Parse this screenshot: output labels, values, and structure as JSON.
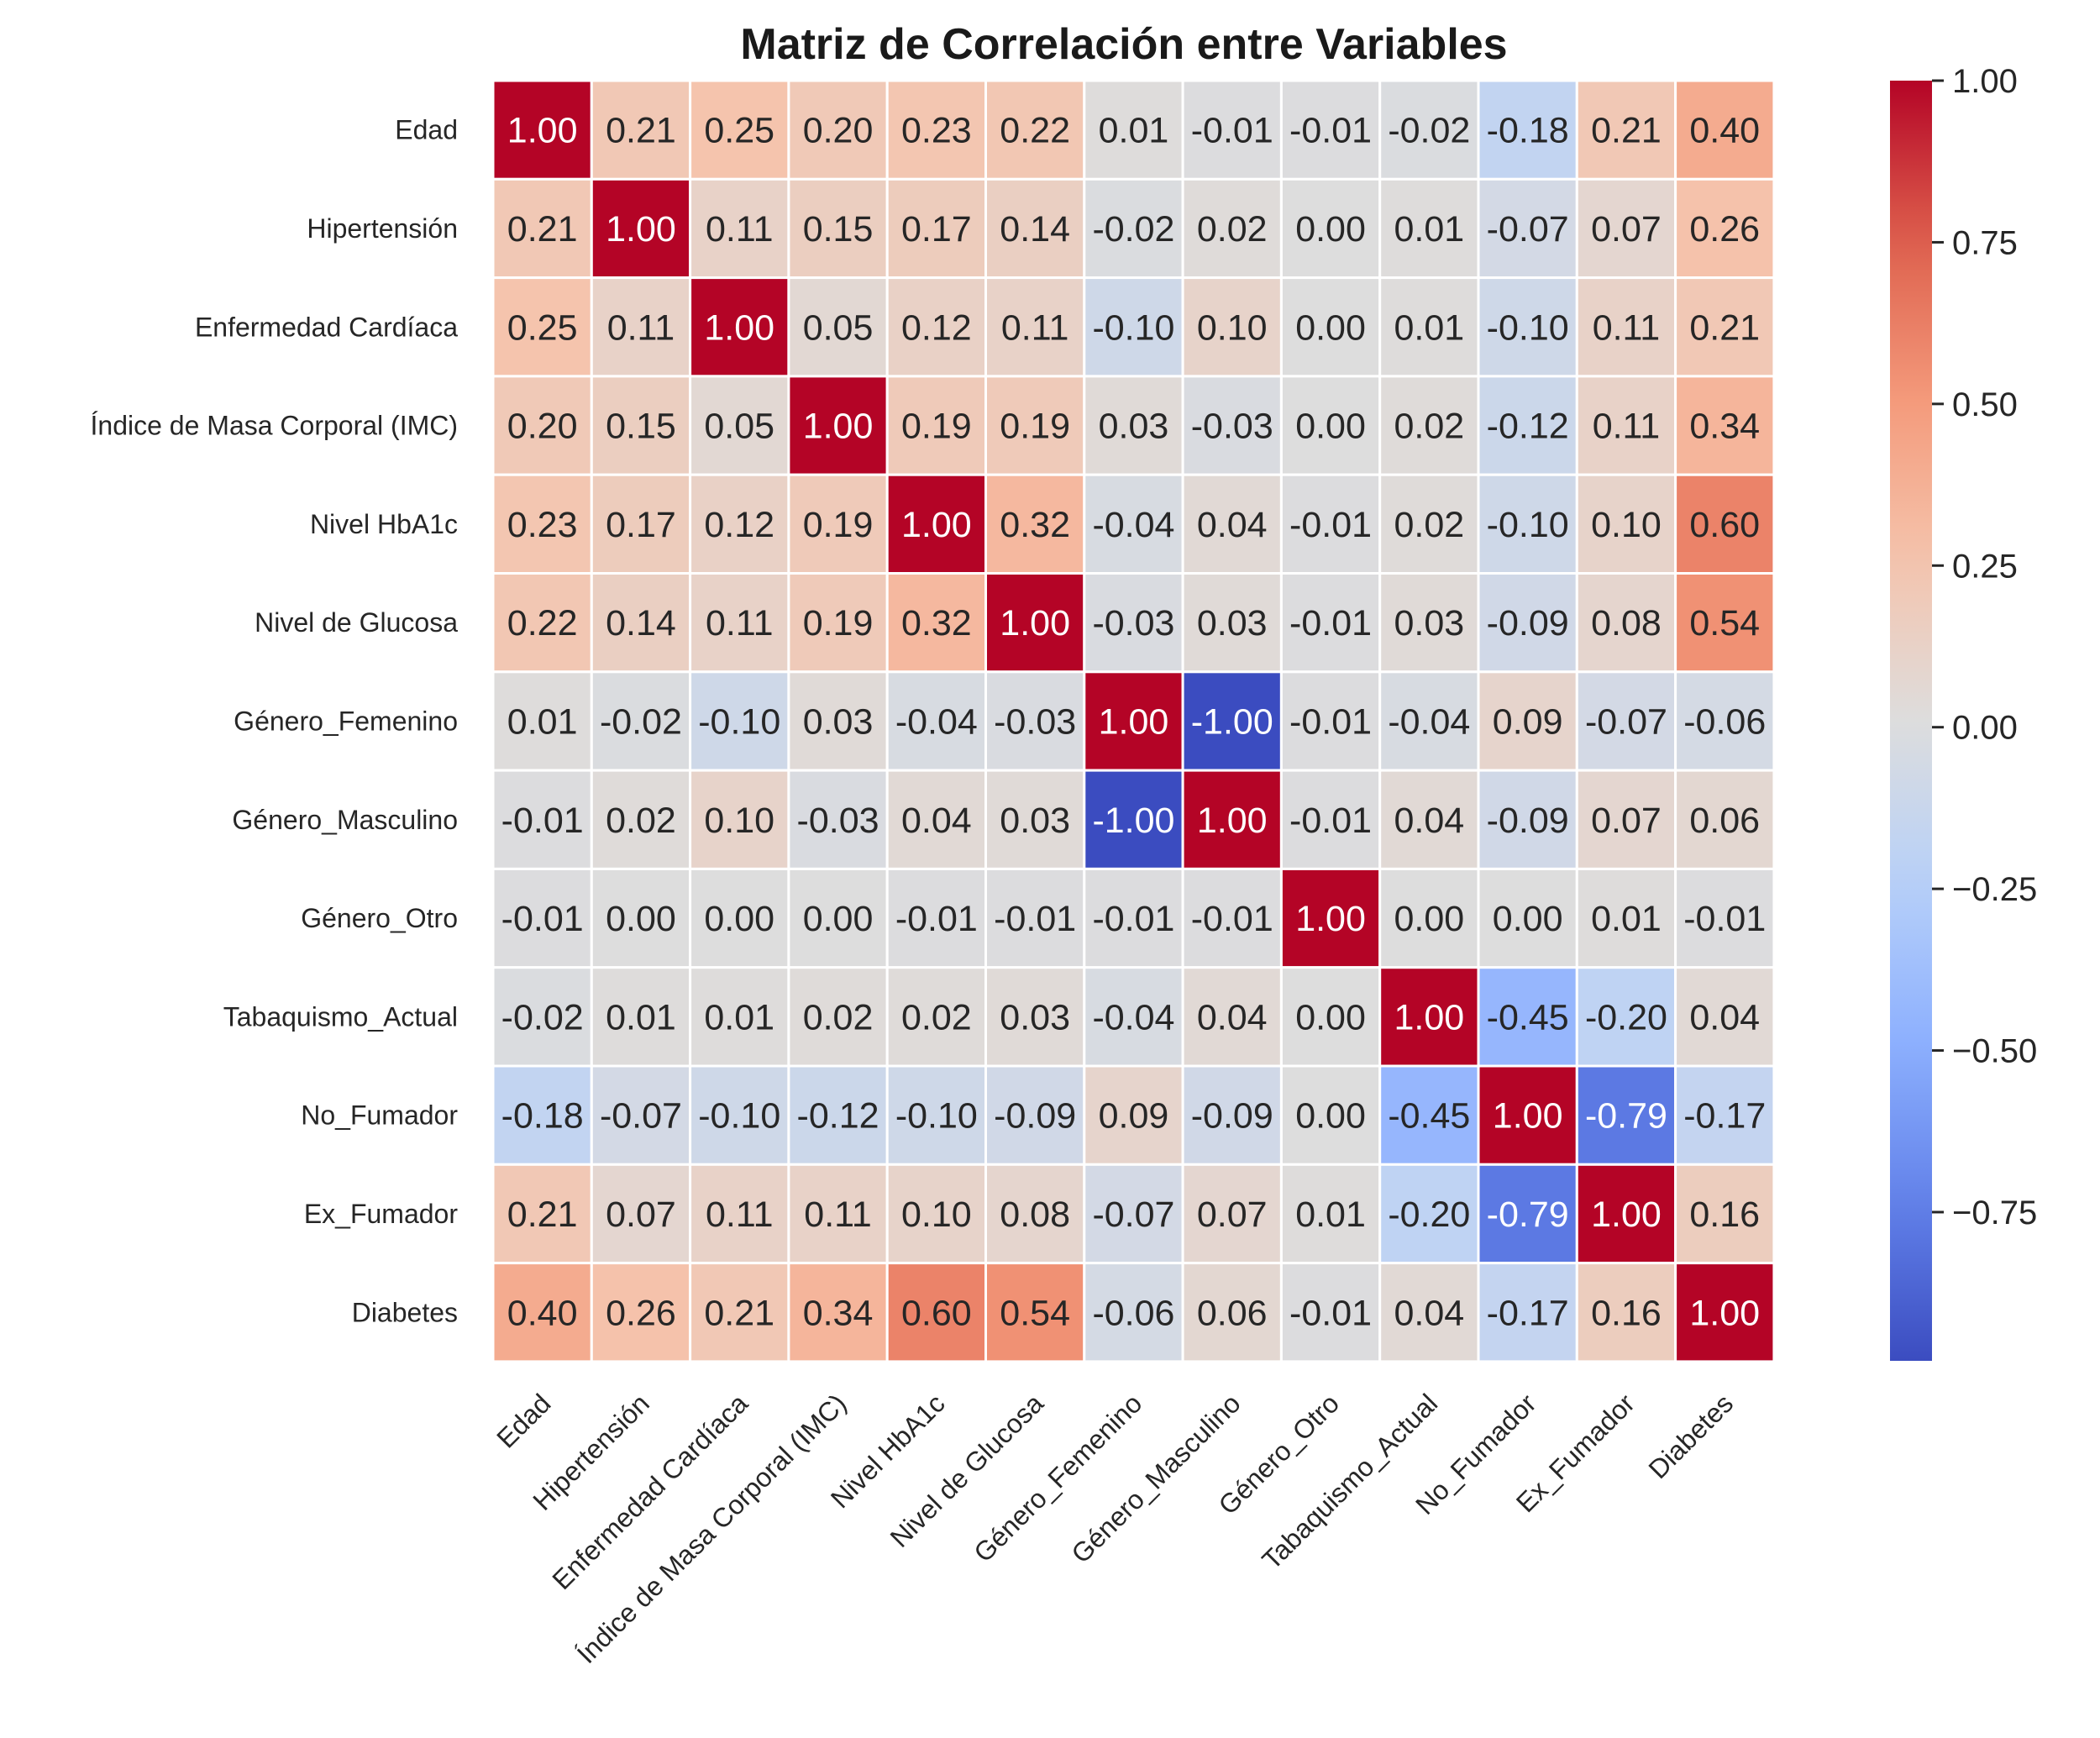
{
  "chart_data": {
    "type": "heatmap",
    "title": "Matriz de Correlación entre Variables",
    "colormap": "coolwarm",
    "vmin": -1.0,
    "vmax": 1.0,
    "labels": [
      "Edad",
      "Hipertensión",
      "Enfermedad Cardíaca",
      "Índice de Masa Corporal (IMC)",
      "Nivel HbA1c",
      "Nivel de Glucosa",
      "Género_Femenino",
      "Género_Masculino",
      "Género_Otro",
      "Tabaquismo_Actual",
      "No_Fumador",
      "Ex_Fumador",
      "Diabetes"
    ],
    "values": [
      [
        1.0,
        0.21,
        0.25,
        0.2,
        0.23,
        0.22,
        0.01,
        -0.01,
        -0.01,
        -0.02,
        -0.18,
        0.21,
        0.4
      ],
      [
        0.21,
        1.0,
        0.11,
        0.15,
        0.17,
        0.14,
        -0.02,
        0.02,
        -0.0,
        0.01,
        -0.07,
        0.07,
        0.26
      ],
      [
        0.25,
        0.11,
        1.0,
        0.05,
        0.12,
        0.11,
        -0.1,
        0.1,
        -0.0,
        0.01,
        -0.1,
        0.11,
        0.21
      ],
      [
        0.2,
        0.15,
        0.05,
        1.0,
        0.19,
        0.19,
        0.03,
        -0.03,
        -0.0,
        0.02,
        -0.12,
        0.11,
        0.34
      ],
      [
        0.23,
        0.17,
        0.12,
        0.19,
        1.0,
        0.32,
        -0.04,
        0.04,
        -0.01,
        0.02,
        -0.1,
        0.1,
        0.6
      ],
      [
        0.22,
        0.14,
        0.11,
        0.19,
        0.32,
        1.0,
        -0.03,
        0.03,
        -0.01,
        0.03,
        -0.09,
        0.08,
        0.54
      ],
      [
        0.01,
        -0.02,
        -0.1,
        0.03,
        -0.04,
        -0.03,
        1.0,
        -1.0,
        -0.01,
        -0.04,
        0.09,
        -0.07,
        -0.06
      ],
      [
        -0.01,
        0.02,
        0.1,
        -0.03,
        0.04,
        0.03,
        -1.0,
        1.0,
        -0.01,
        0.04,
        -0.09,
        0.07,
        0.06
      ],
      [
        -0.01,
        -0.0,
        -0.0,
        -0.0,
        -0.01,
        -0.01,
        -0.01,
        -0.01,
        1.0,
        -0.0,
        -0.0,
        0.01,
        -0.01
      ],
      [
        -0.02,
        0.01,
        0.01,
        0.02,
        0.02,
        0.03,
        -0.04,
        0.04,
        -0.0,
        1.0,
        -0.45,
        -0.2,
        0.04
      ],
      [
        -0.18,
        -0.07,
        -0.1,
        -0.12,
        -0.1,
        -0.09,
        0.09,
        -0.09,
        -0.0,
        -0.45,
        1.0,
        -0.79,
        -0.17
      ],
      [
        0.21,
        0.07,
        0.11,
        0.11,
        0.1,
        0.08,
        -0.07,
        0.07,
        0.01,
        -0.2,
        -0.79,
        1.0,
        0.16
      ],
      [
        0.4,
        0.26,
        0.21,
        0.34,
        0.6,
        0.54,
        -0.06,
        0.06,
        -0.01,
        0.04,
        -0.17,
        0.16,
        1.0
      ]
    ],
    "colorbar_ticks": [
      1.0,
      0.75,
      0.5,
      0.25,
      0.0,
      -0.25,
      -0.5,
      -0.75
    ],
    "colorbar_tick_labels": [
      "1.00",
      "0.75",
      "0.50",
      "0.25",
      "0.00",
      "−0.25",
      "−0.50",
      "−0.75"
    ],
    "annotations": "values shown in each cell with 2 decimals",
    "grid": "white separators between cells"
  }
}
